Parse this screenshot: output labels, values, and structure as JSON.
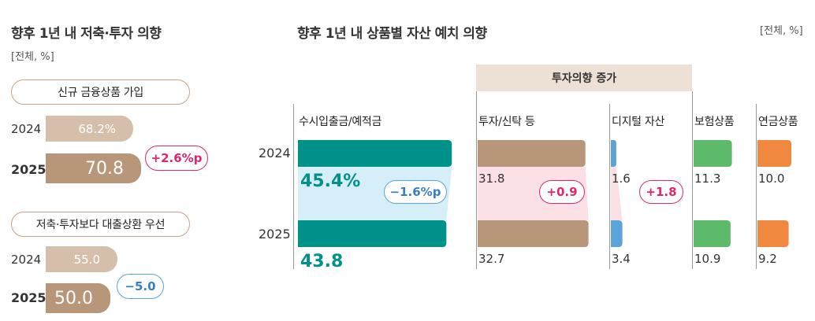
{
  "left_panel": {
    "title": "향후 1년 내 저축·투자 의향",
    "unit": "[전체, %]",
    "groups": [
      {
        "label": "신규 금융상품 가입",
        "year1": "2024",
        "value1": "68.2%",
        "year2": "2025",
        "value2": "70.8",
        "diff": "+2.6%p"
      },
      {
        "label": "저축·투자보다 대출상환 우선",
        "year1": "2024",
        "value1": "55.0",
        "year2": "2025",
        "value2": "50.0",
        "diff": "−5.0"
      }
    ]
  },
  "right_panel": {
    "title": "향후 1년 내 상품별 자산 예치 의향",
    "unit": "[전체, %]",
    "group_header": "투자의향 증가",
    "year1": "2024",
    "year2": "2025"
  },
  "colors": {
    "teal": "#00918a",
    "brown": "#b89679",
    "brown_light": "#d5bfab",
    "blue": "#5ba4d9",
    "green": "#5cba6a",
    "orange": "#f0883f",
    "pink": "#e0266e",
    "header_bg": "#ede1d6"
  },
  "chart_data": [
    {
      "type": "bar",
      "title": "향후 1년 내 저축·투자 의향",
      "categories": [
        "신규 금융상품 가입",
        "저축·투자보다 대출상환 우선"
      ],
      "series": [
        {
          "name": "2024",
          "values": [
            68.2,
            55.0
          ]
        },
        {
          "name": "2025",
          "values": [
            70.8,
            50.0
          ]
        }
      ],
      "annotations": [
        "+2.6%p",
        "−5.0"
      ]
    },
    {
      "type": "bar",
      "title": "향후 1년 내 상품별 자산 예치 의향",
      "categories": [
        "수시입출금/예적금",
        "투자/신탁 등",
        "디지털 자산",
        "보험상품",
        "연금상품"
      ],
      "series": [
        {
          "name": "2024",
          "values": [
            45.4,
            31.8,
            1.6,
            11.3,
            10.0
          ]
        },
        {
          "name": "2025",
          "values": [
            43.8,
            32.7,
            3.4,
            10.9,
            9.2
          ]
        }
      ],
      "value_labels_2024": [
        "45.4%",
        "31.8",
        "1.6",
        "11.3",
        "10.0"
      ],
      "value_labels_2025": [
        "43.8",
        "32.7",
        "3.4",
        "10.9",
        "9.2"
      ],
      "changes": [
        {
          "category": "수시입출금/예적금",
          "label": "−1.6%p"
        },
        {
          "category": "투자/신탁 등",
          "label": "+0.9"
        },
        {
          "category": "디지털 자산",
          "label": "+1.8"
        }
      ]
    }
  ]
}
